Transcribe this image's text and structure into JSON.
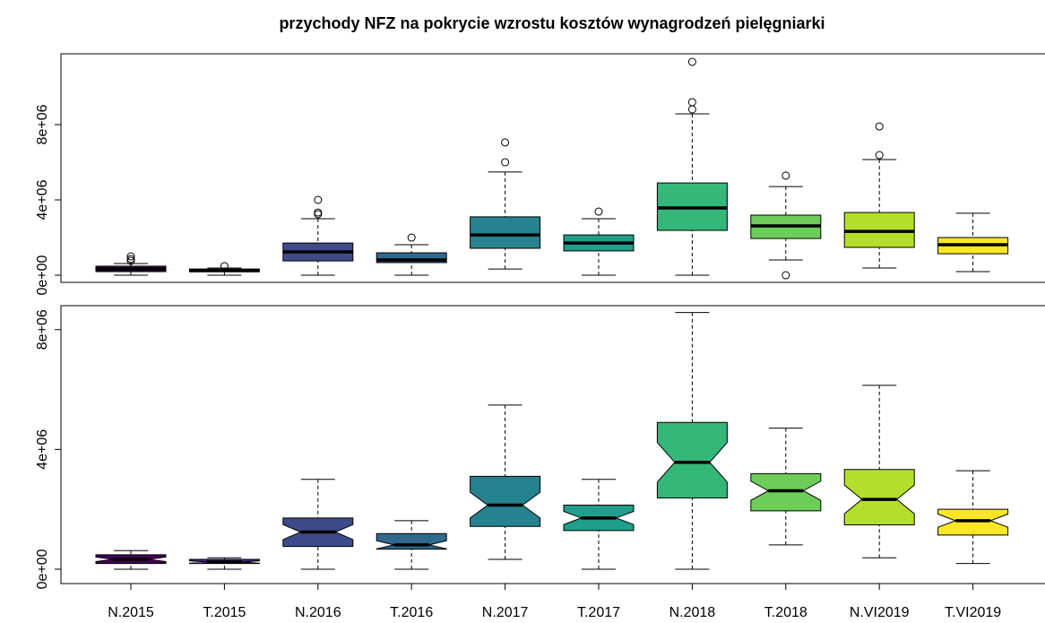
{
  "chart_data": [
    {
      "type": "box",
      "title": "przychody NFZ na pokrycie wzrostu kosztów wynagrodzeń pielęgniarki",
      "ylim": [
        -380000,
        11760000
      ],
      "yticks": [
        {
          "value": 0,
          "label": "0e+00"
        },
        {
          "value": 4000000,
          "label": "4e+06"
        },
        {
          "value": 8000000,
          "label": "8e+06"
        }
      ],
      "colors": [
        "#440154",
        "#482878",
        "#3E4A89",
        "#31688E",
        "#26828E",
        "#1F9E89",
        "#35B779",
        "#6DCD59",
        "#B4DE2C",
        "#FDE725"
      ],
      "boxes": [
        {
          "low": 0,
          "q1": 190000,
          "median": 330000,
          "q3": 480000,
          "high": 620000,
          "outliers": [
            1000000,
            860000,
            760000
          ]
        },
        {
          "low": 0,
          "q1": 190000,
          "median": 240000,
          "q3": 330000,
          "high": 380000,
          "outliers": [
            480000
          ]
        },
        {
          "low": 0,
          "q1": 760000,
          "median": 1240000,
          "q3": 1710000,
          "high": 3000000,
          "outliers": [
            3330000,
            3240000,
            4000000
          ]
        },
        {
          "low": 0,
          "q1": 670000,
          "median": 810000,
          "q3": 1190000,
          "high": 1620000,
          "outliers": [
            2000000
          ]
        },
        {
          "low": 330000,
          "q1": 1430000,
          "median": 2140000,
          "q3": 3100000,
          "high": 5480000,
          "outliers": [
            6000000,
            7050000
          ]
        },
        {
          "low": 0,
          "q1": 1290000,
          "median": 1710000,
          "q3": 2140000,
          "high": 3000000,
          "outliers": [
            3380000
          ]
        },
        {
          "low": 0,
          "q1": 2380000,
          "median": 3570000,
          "q3": 4900000,
          "high": 8570000,
          "outliers": [
            8810000,
            9190000,
            11330000
          ]
        },
        {
          "low": 810000,
          "q1": 1950000,
          "median": 2620000,
          "q3": 3190000,
          "high": 4710000,
          "outliers": [
            5290000,
            0
          ]
        },
        {
          "low": 380000,
          "q1": 1480000,
          "median": 2330000,
          "q3": 3330000,
          "high": 6140000,
          "outliers": [
            6380000,
            7900000
          ]
        },
        {
          "low": 190000,
          "q1": 1140000,
          "median": 1620000,
          "q3": 2000000,
          "high": 3290000,
          "outliers": []
        }
      ]
    },
    {
      "type": "notched-box",
      "ylim": [
        -480000,
        8800000
      ],
      "yticks": [
        {
          "value": 0,
          "label": "0e+00"
        },
        {
          "value": 4000000,
          "label": "4e+06"
        },
        {
          "value": 8000000,
          "label": "8e+06"
        }
      ],
      "categories": [
        "N.2015",
        "T.2015",
        "N.2016",
        "T.2016",
        "N.2017",
        "T.2017",
        "N.2018",
        "T.2018",
        "N.VI2019",
        "T.VI2019"
      ],
      "colors": [
        "#440154",
        "#482878",
        "#3E4A89",
        "#31688E",
        "#26828E",
        "#1F9E89",
        "#35B779",
        "#6DCD59",
        "#B4DE2C",
        "#FDE725"
      ],
      "boxes": [
        {
          "low": 0,
          "q1": 190000,
          "median": 330000,
          "q3": 480000,
          "high": 620000,
          "notch_low": 255000,
          "notch_high": 405000
        },
        {
          "low": 0,
          "q1": 190000,
          "median": 240000,
          "q3": 330000,
          "high": 380000,
          "notch_low": 200000,
          "notch_high": 280000
        },
        {
          "low": 0,
          "q1": 760000,
          "median": 1240000,
          "q3": 1710000,
          "high": 3000000,
          "notch_low": 990000,
          "notch_high": 1490000
        },
        {
          "low": 0,
          "q1": 670000,
          "median": 810000,
          "q3": 1190000,
          "high": 1620000,
          "notch_low": 680000,
          "notch_high": 950000
        },
        {
          "low": 330000,
          "q1": 1430000,
          "median": 2140000,
          "q3": 3100000,
          "high": 5480000,
          "notch_low": 1710000,
          "notch_high": 2570000
        },
        {
          "low": 0,
          "q1": 1290000,
          "median": 1710000,
          "q3": 2140000,
          "high": 3000000,
          "notch_low": 1490000,
          "notch_high": 1930000
        },
        {
          "low": 0,
          "q1": 2380000,
          "median": 3570000,
          "q3": 4900000,
          "high": 8570000,
          "notch_low": 2910000,
          "notch_high": 4230000
        },
        {
          "low": 810000,
          "q1": 1950000,
          "median": 2620000,
          "q3": 3190000,
          "high": 4710000,
          "notch_low": 2300000,
          "notch_high": 2940000
        },
        {
          "low": 380000,
          "q1": 1480000,
          "median": 2330000,
          "q3": 3330000,
          "high": 6140000,
          "notch_low": 1850000,
          "notch_high": 2810000
        },
        {
          "low": 190000,
          "q1": 1140000,
          "median": 1620000,
          "q3": 2000000,
          "high": 3290000,
          "notch_low": 1400000,
          "notch_high": 1840000
        }
      ]
    }
  ]
}
